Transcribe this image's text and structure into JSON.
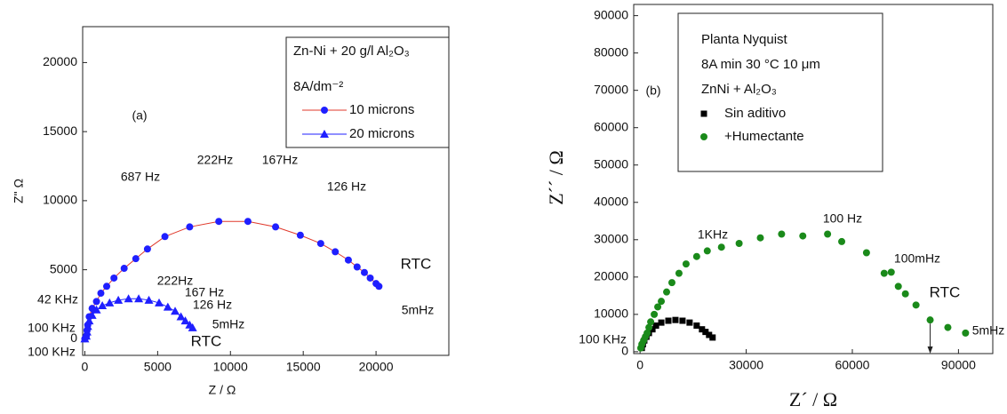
{
  "chart_data": [
    {
      "type": "line",
      "xlabel": "Z / Ω",
      "ylabel": "Z\" Ω",
      "xlim": [
        -150,
        25000
      ],
      "ylim": [
        -1200,
        22600
      ],
      "xticks": [
        0,
        5000,
        10000,
        15000,
        20000
      ],
      "yticks": [
        0,
        5000,
        10000,
        15000,
        20000
      ],
      "legend_title": [
        "Zn-Ni + 20 g/l Al₂O₃",
        "8A/dm⁻²"
      ],
      "annotations": [
        "(a)",
        "687 Hz",
        "222Hz",
        "167Hz",
        "126 Hz",
        "RTC",
        "5mHz",
        "42 KHz",
        "100 KHz",
        "100 KHz",
        "222Hz",
        "167 Hz",
        "126 Hz",
        "5mHz",
        "RTC"
      ],
      "series": [
        {
          "name": "10 microns",
          "color": "#1f1fff",
          "line_color": "#e0392b",
          "marker": "circle",
          "x": [
            0,
            100,
            150,
            200,
            300,
            500,
            800,
            1100,
            1500,
            2000,
            2700,
            3500,
            4300,
            5500,
            7200,
            9200,
            11200,
            13100,
            14800,
            16200,
            17200,
            18100,
            18700,
            19200,
            19600,
            20000,
            20200
          ],
          "values": [
            0,
            200,
            600,
            1000,
            1600,
            2200,
            2700,
            3300,
            3800,
            4400,
            5100,
            5800,
            6500,
            7400,
            8100,
            8500,
            8500,
            8100,
            7500,
            6900,
            6300,
            5700,
            5200,
            4800,
            4400,
            4000,
            3800
          ]
        },
        {
          "name": "20 microns",
          "color": "#1f1fff",
          "line_color": "#1f1fff",
          "marker": "triangle",
          "x": [
            0,
            100,
            150,
            200,
            300,
            500,
            800,
            1200,
            1700,
            2300,
            3000,
            3700,
            4400,
            5100,
            5700,
            6200,
            6600,
            6900,
            7200,
            7400
          ],
          "values": [
            0,
            200,
            500,
            900,
            1300,
            1700,
            2100,
            2400,
            2600,
            2800,
            2900,
            2900,
            2800,
            2600,
            2300,
            2000,
            1600,
            1300,
            1000,
            800
          ]
        }
      ]
    },
    {
      "type": "scatter",
      "xlabel": "Z´ / Ω",
      "ylabel": "Z´´ / Ω",
      "xlim": [
        -1800,
        99700
      ],
      "ylim": [
        -500,
        93000
      ],
      "xticks": [
        0,
        30000,
        60000,
        90000
      ],
      "yticks": [
        0,
        10000,
        20000,
        30000,
        40000,
        50000,
        60000,
        70000,
        80000,
        90000
      ],
      "legend_title": [
        "Planta Nyquist",
        "8A min 30 °C 10 μm",
        "ZnNi + Al₂O₃"
      ],
      "annotations": [
        "(b)",
        "1KHz",
        "100 Hz",
        "100mHz",
        "RTC",
        "5mHz",
        "100 KHz"
      ],
      "series": [
        {
          "name": "Sin aditivo",
          "color": "#000000",
          "marker": "square",
          "x": [
            500,
            800,
            1200,
            1800,
            2500,
            3500,
            4500,
            6000,
            8000,
            10000,
            12000,
            14000,
            16000,
            17500,
            18500,
            19500,
            20500
          ],
          "values": [
            1000,
            2000,
            3000,
            4000,
            5000,
            6000,
            7000,
            7800,
            8300,
            8500,
            8300,
            7800,
            7000,
            6000,
            5300,
            4500,
            3800
          ]
        },
        {
          "name": "+Humectante",
          "color": "#1a8a1a",
          "marker": "circle",
          "x": [
            200,
            500,
            1000,
            1500,
            2000,
            2500,
            3000,
            4000,
            5000,
            6000,
            7500,
            9000,
            11000,
            13000,
            16000,
            19000,
            23000,
            28000,
            34000,
            40000,
            46000,
            53000,
            57000,
            64000,
            69000,
            71000,
            73000,
            75000,
            78000,
            82000,
            87000,
            92000
          ],
          "values": [
            1000,
            2000,
            3000,
            4000,
            5000,
            6500,
            8000,
            10000,
            12000,
            13500,
            16000,
            18500,
            21000,
            23500,
            25500,
            27000,
            28000,
            29000,
            30500,
            31500,
            31000,
            31500,
            29500,
            26500,
            21000,
            21300,
            17500,
            15500,
            12500,
            8500,
            6500,
            5000
          ]
        }
      ]
    }
  ]
}
